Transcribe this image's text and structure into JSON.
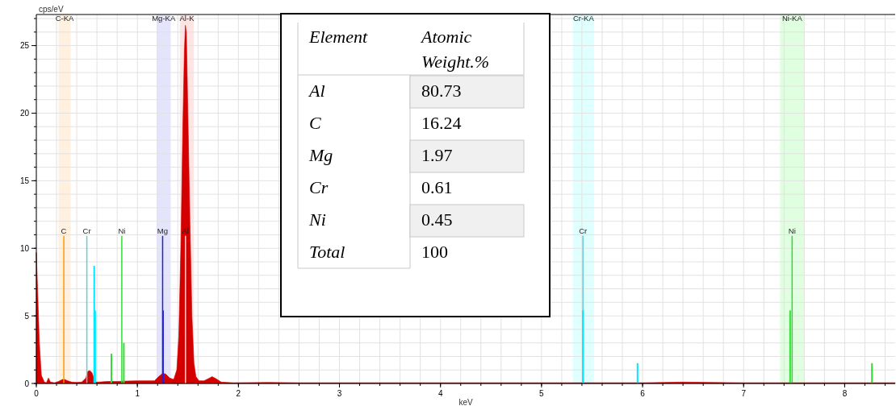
{
  "chart_data": [
    {
      "type": "area",
      "xlabel": "keV",
      "ylabel": "cps/eV",
      "xlim": [
        0,
        8.5
      ],
      "ylim": [
        0,
        27.3
      ],
      "xticks": [
        0,
        1,
        2,
        3,
        4,
        5,
        6,
        7,
        8
      ],
      "yticks": [
        0,
        5,
        10,
        15,
        20,
        25
      ],
      "grid": true,
      "series": [
        {
          "type": "area",
          "color": "#d40000",
          "x": [
            0,
            0.01,
            0.03,
            0.05,
            0.08,
            0.1,
            0.12,
            0.14,
            0.18,
            0.22,
            0.26,
            0.28,
            0.31,
            0.35,
            0.4,
            0.45,
            0.49,
            0.51,
            0.53,
            0.55,
            0.57,
            0.59,
            0.62,
            0.7,
            0.8,
            0.9,
            1.0,
            1.1,
            1.17,
            1.21,
            1.25,
            1.28,
            1.32,
            1.36,
            1.39,
            1.41,
            1.43,
            1.45,
            1.465,
            1.475,
            1.485,
            1.5,
            1.52,
            1.54,
            1.56,
            1.58,
            1.61,
            1.66,
            1.7,
            1.74,
            1.78,
            1.83,
            1.95,
            2.3,
            2.6,
            3.0,
            4.0,
            5.0,
            6.0,
            6.4,
            7.0,
            8.0,
            8.5
          ],
          "values": [
            9.7,
            7.5,
            3,
            0.6,
            0.1,
            0.05,
            0.4,
            0.1,
            0.05,
            0.15,
            0.3,
            0.3,
            0.2,
            0.1,
            0.08,
            0.1,
            0.4,
            0.9,
            0.95,
            0.8,
            0.4,
            0.1,
            0.1,
            0.15,
            0.15,
            0.18,
            0.2,
            0.2,
            0.2,
            0.5,
            0.75,
            0.7,
            0.4,
            0.3,
            1.0,
            3.5,
            10,
            19,
            24.5,
            26.5,
            26,
            20,
            12,
            5,
            1.5,
            0.5,
            0.2,
            0.2,
            0.35,
            0.5,
            0.35,
            0.1,
            0.05,
            0.08,
            0.05,
            0.05,
            0.05,
            0.05,
            0.05,
            0.1,
            0.05,
            0.05,
            0.05
          ]
        },
        {
          "type": "bar",
          "color": "#00e8ff",
          "x": [
            0.573,
            0.582,
            5.41,
            5.95
          ],
          "values": [
            8.7,
            5.4,
            5.4,
            1.5
          ]
        },
        {
          "type": "bar",
          "color": "#33dd33",
          "x": [
            0.743,
            0.866,
            7.46,
            8.27
          ],
          "values": [
            2.2,
            3.0,
            5.4,
            1.5
          ]
        },
        {
          "type": "bar",
          "color": "#2222dd",
          "x": [
            1.254
          ],
          "values": [
            5.4
          ]
        }
      ],
      "bands": [
        {
          "axis": "x",
          "from": 0.22,
          "to": 0.34,
          "label": "C-KA",
          "color": "#fff0e0"
        },
        {
          "axis": "x",
          "from": 1.19,
          "to": 1.33,
          "label": "Mg-KA",
          "color": "#e4e4fa"
        },
        {
          "axis": "x",
          "from": 1.42,
          "to": 1.56,
          "label": "Al-K",
          "color": "#ffe4e4"
        },
        {
          "axis": "x",
          "from": 5.31,
          "to": 5.52,
          "label": "Cr-KA",
          "color": "#e0ffff"
        },
        {
          "axis": "x",
          "from": 7.36,
          "to": 7.6,
          "label": "Ni-KA",
          "color": "#e0ffe0"
        }
      ],
      "ref_lines": [
        {
          "axis": "x",
          "value": 0.272,
          "label": "C",
          "color": "#ff9900"
        },
        {
          "axis": "x",
          "value": 0.5,
          "label": "Cr",
          "color": "#66ccdd"
        },
        {
          "axis": "x",
          "value": 0.846,
          "label": "Ni",
          "color": "#33dd33"
        },
        {
          "axis": "x",
          "value": 1.25,
          "label": "Mg",
          "color": "#2222dd"
        },
        {
          "axis": "x",
          "value": 1.476,
          "label": "Al",
          "color": "#ffdddd"
        },
        {
          "axis": "x",
          "value": 5.41,
          "label": "Cr",
          "color": "#66ccdd"
        },
        {
          "axis": "x",
          "value": 7.48,
          "label": "Ni",
          "color": "#33dd33"
        }
      ]
    },
    {
      "type": "other",
      "xlabel": "Element",
      "ylabel": "Atomic Weight.%",
      "categories": [
        "Al",
        "C",
        "Mg",
        "Cr",
        "Ni",
        "Total"
      ],
      "values": [
        80.73,
        16.24,
        1.97,
        0.61,
        0.45,
        100
      ],
      "data_labels": true
    }
  ]
}
